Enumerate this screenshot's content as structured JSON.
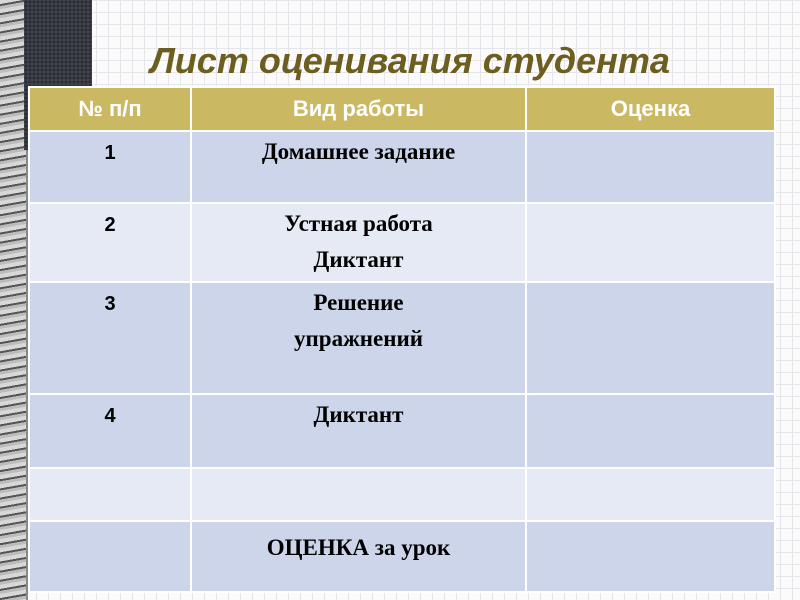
{
  "title": "Лист оценивания студента",
  "colors": {
    "header": "#cbb863",
    "title": "#6b5e1f",
    "row_dark": "#cdd5ea",
    "row_light": "#e6eaf5"
  },
  "table": {
    "headers": [
      "№ п/п",
      "Вид работы",
      "Оценка"
    ],
    "rows": [
      {
        "num": "1",
        "work": [
          "Домашнее задание"
        ],
        "grade": ""
      },
      {
        "num": "2",
        "work": [
          "Устная работа",
          "Диктант"
        ],
        "grade": ""
      },
      {
        "num": "3",
        "work": [
          "Решение",
          "упражнений"
        ],
        "grade": ""
      },
      {
        "num": "4",
        "work": [
          "Диктант"
        ],
        "grade": ""
      },
      {
        "num": "",
        "work": [
          ""
        ],
        "grade": ""
      },
      {
        "num": "",
        "work": [
          "ОЦЕНКА за урок"
        ],
        "grade": ""
      }
    ]
  }
}
